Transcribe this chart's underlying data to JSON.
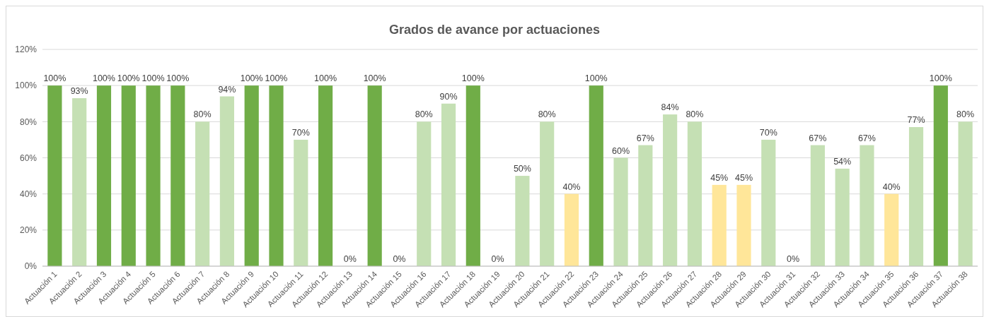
{
  "chart_data": {
    "type": "bar",
    "title": "Grados de avance por actuaciones",
    "categories": [
      "Actuación 1",
      "Actuación 2",
      "Actuación 3",
      "Actuación 4",
      "Actuación 5",
      "Actuación 6",
      "Actuación 7",
      "Actuación 8",
      "Actuación 9",
      "Actuación 10",
      "Actuación 11",
      "Actuación 12",
      "Actuación 13",
      "Actuación 14",
      "Actuación 15",
      "Actuación 16",
      "Actuación 17",
      "Actuación 18",
      "Actuación 19",
      "Actuación 20",
      "Actuación 21",
      "Actuación 22",
      "Actuación 23",
      "Actuación 24",
      "Actuación 25",
      "Actuación 26",
      "Actuación 27",
      "Actuación 28",
      "Actuación 29",
      "Actuación 30",
      "Actuación 31",
      "Actuación 32",
      "Actuación 33",
      "Actuación 34",
      "Actuación 35",
      "Actuación 36",
      "Actuación 37",
      "Actuación 38"
    ],
    "values": [
      100,
      93,
      100,
      100,
      100,
      100,
      80,
      94,
      100,
      100,
      70,
      100,
      0,
      100,
      0,
      80,
      90,
      100,
      0,
      50,
      80,
      40,
      100,
      60,
      67,
      84,
      80,
      45,
      45,
      70,
      0,
      67,
      54,
      67,
      40,
      77,
      100,
      80
    ],
    "value_labels": [
      "100%",
      "93%",
      "100%",
      "100%",
      "100%",
      "100%",
      "80%",
      "94%",
      "100%",
      "100%",
      "70%",
      "100%",
      "0%",
      "100%",
      "0%",
      "80%",
      "90%",
      "100%",
      "0%",
      "50%",
      "80%",
      "40%",
      "100%",
      "60%",
      "67%",
      "84%",
      "80%",
      "45%",
      "45%",
      "70%",
      "0%",
      "67%",
      "54%",
      "67%",
      "40%",
      "77%",
      "100%",
      "80%"
    ],
    "colors": [
      "#70ad47",
      "#c5e0b4",
      "#70ad47",
      "#70ad47",
      "#70ad47",
      "#70ad47",
      "#c5e0b4",
      "#c5e0b4",
      "#70ad47",
      "#70ad47",
      "#c5e0b4",
      "#70ad47",
      "#c5e0b4",
      "#70ad47",
      "#c5e0b4",
      "#c5e0b4",
      "#c5e0b4",
      "#70ad47",
      "#c5e0b4",
      "#c5e0b4",
      "#c5e0b4",
      "#ffe699",
      "#70ad47",
      "#c5e0b4",
      "#c5e0b4",
      "#c5e0b4",
      "#c5e0b4",
      "#ffe699",
      "#ffe699",
      "#c5e0b4",
      "#c5e0b4",
      "#c5e0b4",
      "#c5e0b4",
      "#c5e0b4",
      "#ffe699",
      "#c5e0b4",
      "#70ad47",
      "#c5e0b4"
    ],
    "ylim": [
      0,
      120
    ],
    "yticks": [
      {
        "value": 0,
        "label": "0%"
      },
      {
        "value": 20,
        "label": "20%"
      },
      {
        "value": 40,
        "label": "40%"
      },
      {
        "value": 60,
        "label": "60%"
      },
      {
        "value": 80,
        "label": "80%"
      },
      {
        "value": 100,
        "label": "100%"
      },
      {
        "value": 120,
        "label": "120%"
      }
    ],
    "grid": "y"
  }
}
